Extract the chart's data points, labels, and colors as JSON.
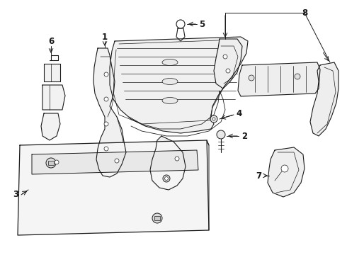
{
  "background": "#ffffff",
  "line_color": "#1a1a1a",
  "label_color": "#111111",
  "figsize": [
    4.9,
    3.6
  ],
  "dpi": 100,
  "lw": 0.7,
  "parts": {
    "label_fontsize": 8.5
  }
}
